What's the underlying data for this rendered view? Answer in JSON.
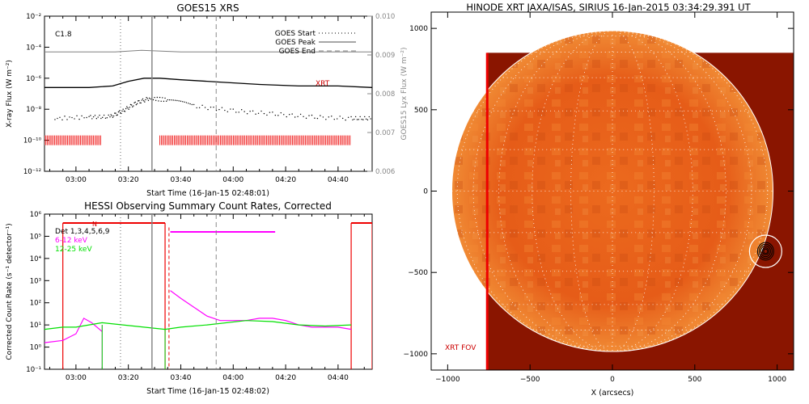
{
  "chart_data": [
    {
      "type": "line",
      "title": "GOES15 XRS",
      "xlabel": "Start Time (16-Jan-15 02:48:01)",
      "ylabel": "X-ray Flux (W m⁻²)",
      "ylabel_right": "GOES15 Lyx Flux (W m⁻²)",
      "x_ticks": [
        "03:00",
        "03:20",
        "03:40",
        "04:00",
        "04:20",
        "04:40"
      ],
      "y_ticks": [
        "10⁻¹²",
        "10⁻¹⁰",
        "10⁻⁸",
        "10⁻⁶",
        "10⁻⁴",
        "10⁻²"
      ],
      "y_ticks_right": [
        "0.006",
        "0.007",
        "0.008",
        "0.009",
        "0.010"
      ],
      "ylim_log10": [
        -12,
        -2
      ],
      "y2lim": [
        0.006,
        0.01
      ],
      "xlim_min": [
        168,
        293
      ],
      "flare_class": "C1.8",
      "legend": [
        "GOES Start",
        "GOES Peak",
        "GOES End"
      ],
      "legend_position": "top-right",
      "markers_min": {
        "goes_start": 197,
        "goes_peak": 209,
        "goes_end": 233.5
      },
      "series": [
        {
          "name": "",
          "color": "#808080",
          "x": [
            168,
            180,
            195,
            205,
            220,
            240,
            260,
            280,
            293
          ],
          "log_y": [
            -4.3,
            -4.3,
            -4.3,
            -4.2,
            -4.3,
            -4.3,
            -4.3,
            -4.3,
            -4.3
          ]
        },
        {
          "name": "",
          "color": "#000000",
          "x": [
            168,
            185,
            194,
            200,
            206,
            212,
            220,
            235,
            250,
            265,
            280,
            293
          ],
          "log_y": [
            -6.6,
            -6.6,
            -6.5,
            -6.2,
            -6.0,
            -6.0,
            -6.1,
            -6.25,
            -6.4,
            -6.5,
            -6.5,
            -6.6
          ]
        },
        {
          "name": "",
          "color": "#000000",
          "style": "dotted",
          "x": [
            172,
            185,
            193,
            198,
            203,
            208,
            215,
            225,
            240,
            255,
            270,
            285,
            293
          ],
          "log_y": [
            -8.6,
            -8.5,
            -8.5,
            -8.1,
            -7.6,
            -7.3,
            -7.4,
            -7.8,
            -8.1,
            -8.3,
            -8.5,
            -8.6,
            -8.6
          ]
        }
      ],
      "xrt_label": "XRT",
      "xrt_label_color": "#cc0000",
      "xrt_obs_min": [
        [
          168,
          190
        ],
        [
          212,
          285
        ]
      ]
    },
    {
      "type": "line",
      "title": "HESSI Observing Summary Count Rates, Corrected",
      "xlabel": "Start Time (16-Jan-15 02:48:02)",
      "ylabel": "Corrected Count Rate (s⁻¹ detector⁻¹)",
      "x_ticks": [
        "03:00",
        "03:20",
        "03:40",
        "04:00",
        "04:20",
        "04:40"
      ],
      "y_ticks": [
        "10⁻¹",
        "10⁰",
        "10¹",
        "10²",
        "10³",
        "10⁴",
        "10⁵",
        "10⁶"
      ],
      "ylim_log10": [
        -1,
        6
      ],
      "xlim_min": [
        168,
        293
      ],
      "detectors_label": "Det 1,3,4,5,6,9",
      "night_flag": "N",
      "markers_min": {
        "goes_start": 197,
        "goes_peak": 209,
        "goes_end": 233.5
      },
      "series": [
        {
          "name": "6-12 keV",
          "color": "#ff00ff",
          "x": [
            168,
            175,
            180,
            183,
            186,
            189,
            190,
            215.5,
            216,
            220,
            225,
            230,
            235,
            245,
            250,
            255,
            260,
            265,
            270,
            280,
            285
          ],
          "log_y": [
            0.2,
            0.3,
            0.6,
            1.3,
            1.1,
            0.8,
            0.7,
            null,
            2.55,
            2.2,
            1.8,
            1.4,
            1.2,
            1.2,
            1.3,
            1.3,
            1.2,
            1.0,
            0.9,
            0.9,
            0.8
          ]
        },
        {
          "name": "12-25 keV",
          "color": "#00e000",
          "x": [
            168,
            175,
            180,
            185,
            190,
            214,
            220,
            230,
            245,
            255,
            265,
            275,
            285
          ],
          "log_y": [
            0.8,
            0.9,
            0.9,
            1.0,
            1.1,
            0.8,
            0.9,
            1.0,
            1.2,
            1.15,
            1.0,
            0.95,
            1.0
          ]
        }
      ],
      "attenuator_segments_min": [
        [
          175,
          214,
          5.6
        ],
        [
          216,
          256,
          5.2
        ],
        [
          285,
          293,
          5.6
        ]
      ]
    }
  ],
  "image_panel": {
    "title": "HINODE XRT JAXA/ISAS, SIRIUS 16-Jan-2015 03:34:29.391 UT",
    "xlabel": "X (arcsecs)",
    "x_ticks": [
      "−1000",
      "−500",
      "0",
      "500",
      "1000"
    ],
    "y_ticks": [
      "1000",
      "500",
      "0",
      "−500",
      "−1000"
    ],
    "xlim": [
      -1100,
      1100
    ],
    "ylim": [
      -1100,
      1100
    ],
    "fov_label": "XRT FOV",
    "fov_label_color": "#cc0000",
    "fov_edge_x": -760,
    "image_extent": [
      -760,
      1100,
      -1100,
      850
    ],
    "solar_radius": 975,
    "active_region_center": [
      930,
      -370
    ],
    "colors": {
      "fov_background": "#8a1500",
      "disk_base": "#e05818",
      "limb_circle": "#ffffff",
      "grid": "#ffffff",
      "contours": "#000000"
    }
  }
}
